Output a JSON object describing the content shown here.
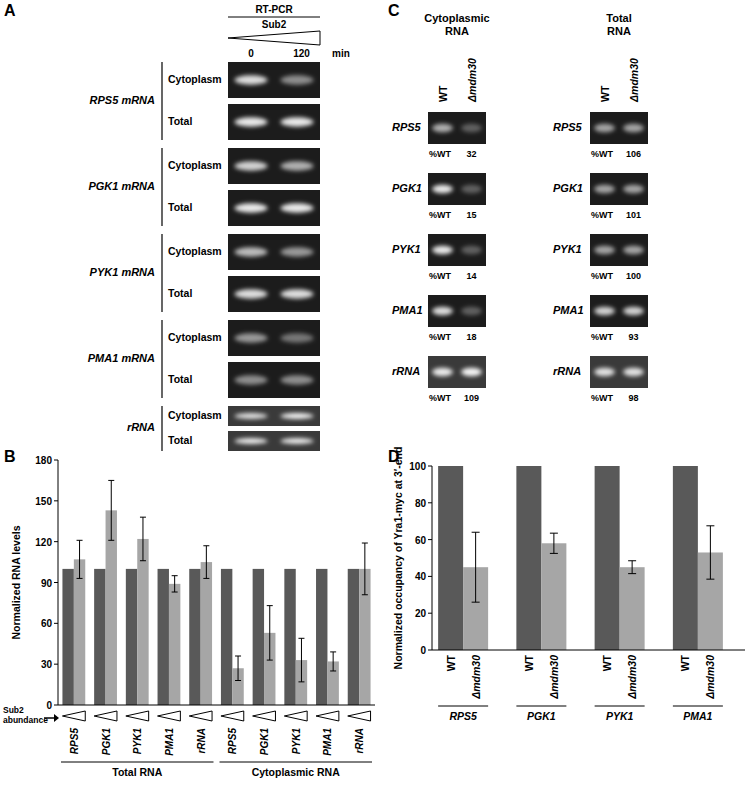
{
  "gel_panels": [
    {
      "panel_label": "A",
      "method": "RT-PCR",
      "factor": "Sub2",
      "time_points": [
        0,
        120
      ],
      "time_unit": "min",
      "row_labels": [
        "Cytoplasm",
        "Total"
      ],
      "genes": [
        {
          "label": "RPS5 mRNA",
          "bands": [
            [
              0.85,
              0.5
            ],
            [
              0.9,
              0.9
            ]
          ]
        },
        {
          "label": "PGK1 mRNA",
          "bands": [
            [
              0.8,
              0.65
            ],
            [
              0.9,
              0.9
            ]
          ]
        },
        {
          "label": "PYK1 mRNA",
          "bands": [
            [
              0.7,
              0.55
            ],
            [
              0.85,
              0.85
            ]
          ]
        },
        {
          "label": "PMA1 mRNA",
          "bands": [
            [
              0.55,
              0.4
            ],
            [
              0.5,
              0.5
            ]
          ]
        },
        {
          "label": "rRNA",
          "bands": [
            [
              0.85,
              0.95
            ],
            [
              0.9,
              0.9
            ]
          ]
        }
      ]
    },
    {
      "panel_label": "C",
      "gels": [
        {
          "title": "Cytoplasmic RNA",
          "lanes": [
            "WT",
            "Δmdm30"
          ],
          "percent_label": "%WT",
          "rows": [
            {
              "gene": "RPS5",
              "percent_wt": 32,
              "bands": [
                0.65,
                0.3
              ]
            },
            {
              "gene": "PGK1",
              "percent_wt": 15,
              "bands": [
                0.9,
                0.3
              ]
            },
            {
              "gene": "PYK1",
              "percent_wt": 14,
              "bands": [
                0.9,
                0.3
              ]
            },
            {
              "gene": "PMA1",
              "percent_wt": 18,
              "bands": [
                0.85,
                0.3
              ]
            },
            {
              "gene": "rRNA",
              "percent_wt": 109,
              "bands": [
                0.9,
                0.95
              ]
            }
          ]
        },
        {
          "title": "Total RNA",
          "lanes": [
            "WT",
            "Δmdm30"
          ],
          "percent_label": "%WT",
          "rows": [
            {
              "gene": "RPS5",
              "percent_wt": 106,
              "bands": [
                0.6,
                0.6
              ]
            },
            {
              "gene": "PGK1",
              "percent_wt": 101,
              "bands": [
                0.6,
                0.6
              ]
            },
            {
              "gene": "PYK1",
              "percent_wt": 100,
              "bands": [
                0.6,
                0.6
              ]
            },
            {
              "gene": "PMA1",
              "percent_wt": 93,
              "bands": [
                0.8,
                0.8
              ]
            },
            {
              "gene": "rRNA",
              "percent_wt": 98,
              "bands": [
                0.85,
                0.85
              ]
            }
          ]
        }
      ]
    }
  ],
  "chart_data": [
    {
      "type": "bar",
      "panel_label": "B",
      "y_label": "Normalized RNA levels",
      "ylim": [
        0,
        180
      ],
      "yticks": [
        0,
        30,
        60,
        90,
        120,
        150,
        180
      ],
      "groups": [
        {
          "label": "Total RNA",
          "categories": [
            "RPS5",
            "PGK1",
            "PYK1",
            "PMA1",
            "rRNA"
          ]
        },
        {
          "label": "Cytoplasmic RNA",
          "categories": [
            "RPS5",
            "PGK1",
            "PYK1",
            "PMA1",
            "rRNA"
          ]
        }
      ],
      "series": [
        {
          "color": "#595959",
          "values": [
            100,
            100,
            100,
            100,
            100,
            100,
            100,
            100,
            100,
            100
          ]
        },
        {
          "color": "#a6a6a6",
          "values": [
            107,
            143,
            122,
            89,
            105,
            27,
            53,
            33,
            32,
            100
          ],
          "errors": [
            14,
            22,
            16,
            6,
            12,
            9,
            20,
            16,
            7,
            19
          ]
        }
      ],
      "annotation": "Sub2 abundance"
    },
    {
      "type": "bar",
      "panel_label": "D",
      "y_label": "Normalized occupancy of Yra1-myc at 3′-end",
      "ylim": [
        0,
        100
      ],
      "yticks": [
        0,
        20,
        40,
        60,
        80,
        100
      ],
      "categories": [
        "RPS5",
        "PGK1",
        "PYK1",
        "PMA1"
      ],
      "series": [
        {
          "name": "WT",
          "color": "#595959",
          "values": [
            100,
            100,
            100,
            100
          ]
        },
        {
          "name": "Δmdm30",
          "color": "#a6a6a6",
          "values": [
            45,
            58,
            45,
            53
          ],
          "errors": [
            19,
            5.5,
            3.5,
            14.5
          ]
        }
      ]
    }
  ]
}
